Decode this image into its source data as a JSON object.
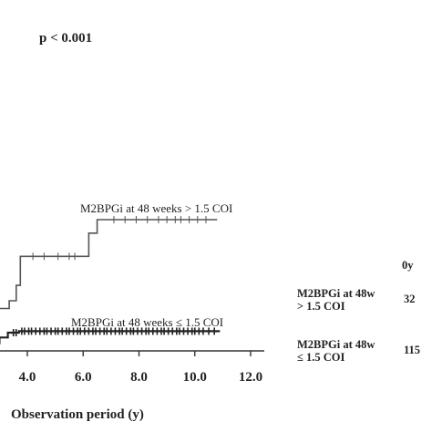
{
  "chart_data": {
    "type": "line",
    "subtype": "kaplan-meier-step",
    "p_value_text": "p < 0.001",
    "xlabel": "Observation period (y)",
    "ylabel": "",
    "xlim": [
      2.8,
      12.8
    ],
    "x_ticks": [
      4.0,
      6.0,
      8.0,
      10.0,
      12.0
    ],
    "x_tick_labels": [
      "4.0",
      "6.0",
      "8.0",
      "10.0",
      "12.0"
    ],
    "series": [
      {
        "name": "M2BPGi at 48 weeks > 1.5 COI",
        "color": "#555555",
        "steps": [
          [
            2.8,
            0.0
          ],
          [
            2.9,
            0.0
          ],
          [
            2.9,
            0.08
          ],
          [
            3.35,
            0.08
          ],
          [
            3.35,
            0.16
          ],
          [
            3.6,
            0.16
          ],
          [
            3.6,
            0.32
          ],
          [
            3.75,
            0.32
          ],
          [
            3.75,
            0.62
          ],
          [
            6.2,
            0.62
          ],
          [
            6.2,
            0.86
          ],
          [
            6.5,
            0.86
          ],
          [
            6.5,
            1.0
          ],
          [
            10.8,
            1.0
          ]
        ],
        "censor_x": [
          4.2,
          4.6,
          5.1,
          5.5,
          5.7,
          7.1,
          7.5,
          7.9,
          8.3,
          8.7,
          9.0,
          9.3,
          9.5,
          9.8,
          10.1,
          10.4
        ]
      },
      {
        "name": "M2BPGi at 48 weeks ≤ 1.5 COI",
        "color": "#222222",
        "steps": [
          [
            2.8,
            -0.28
          ],
          [
            3.0,
            -0.28
          ],
          [
            3.0,
            -0.22
          ],
          [
            3.3,
            -0.22
          ],
          [
            3.3,
            -0.17
          ],
          [
            3.7,
            -0.17
          ],
          [
            3.7,
            -0.155
          ],
          [
            10.9,
            -0.155
          ]
        ],
        "censor_x": [
          3.5,
          3.6,
          3.8,
          3.9,
          4.05,
          4.15,
          4.3,
          4.45,
          4.6,
          4.7,
          4.85,
          5.0,
          5.1,
          5.25,
          5.4,
          5.5,
          5.65,
          5.8,
          5.9,
          6.05,
          6.2,
          6.35,
          6.45,
          6.6,
          6.75,
          6.85,
          7.0,
          7.15,
          7.3,
          7.4,
          7.55,
          7.7,
          7.8,
          7.95,
          8.1,
          8.25,
          8.35,
          8.5,
          8.65,
          8.8,
          8.9,
          9.05,
          9.2,
          9.35,
          9.45,
          9.6,
          9.75,
          9.9,
          10.0,
          10.15,
          10.3,
          10.5,
          10.7
        ]
      }
    ],
    "risk_table": {
      "header": "0y",
      "rows": [
        {
          "label": "M2BPGi at 48w\n> 1.5 COI",
          "value": "32"
        },
        {
          "label": "M2BPGi at 48w\n≤ 1.5 COI",
          "value": "115"
        }
      ]
    }
  }
}
